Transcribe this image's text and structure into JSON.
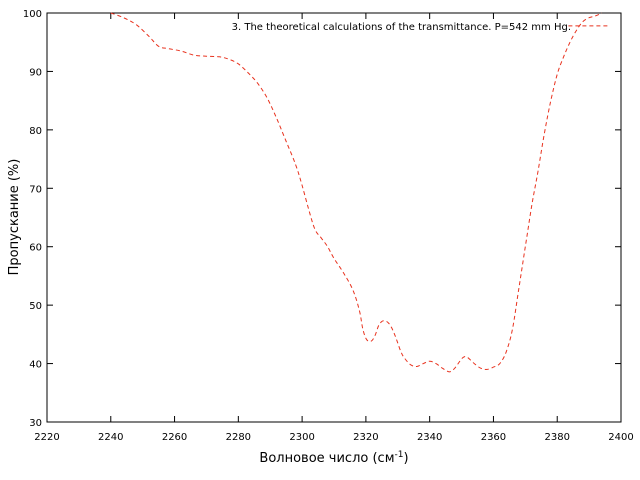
{
  "chart_data": {
    "type": "line",
    "title": "",
    "xlabel": "Волновое число (см",
    "xlabel_sup": "-1",
    "xlabel_end": ")",
    "ylabel": "Пропускание (%)",
    "xlim": [
      2220,
      2400
    ],
    "ylim": [
      30,
      100
    ],
    "xticks": [
      2220,
      2240,
      2260,
      2280,
      2300,
      2320,
      2340,
      2360,
      2380,
      2400
    ],
    "yticks": [
      30,
      40,
      50,
      60,
      70,
      80,
      90,
      100
    ],
    "xtick_labels": [
      "2220",
      "2240",
      "2260",
      "2280",
      "2300",
      "2320",
      "2340",
      "2360",
      "2380",
      "2400"
    ],
    "ytick_labels": [
      "30",
      "40",
      "50",
      "60",
      "70",
      "80",
      "90",
      "100"
    ],
    "grid": false,
    "legend_position": "top-right",
    "series": [
      {
        "name": "3. The theoretical calculations of the transmittance. P=542 mm Hg.",
        "color": "#e8321e",
        "style": "dashed",
        "x": [
          2240,
          2244,
          2248,
          2252,
          2255,
          2258,
          2262,
          2266,
          2270,
          2274,
          2277,
          2280,
          2283,
          2286,
          2289,
          2292,
          2295,
          2298,
          2300,
          2302,
          2304,
          2306,
          2308,
          2310,
          2313,
          2316,
          2318,
          2319,
          2320,
          2321,
          2322,
          2323,
          2324,
          2325,
          2326,
          2327,
          2328,
          2329,
          2330,
          2331,
          2332,
          2334,
          2336,
          2338,
          2340,
          2342,
          2344,
          2346,
          2347,
          2348,
          2350,
          2351,
          2352,
          2354,
          2356,
          2358,
          2360,
          2362,
          2364,
          2366,
          2368,
          2370,
          2372,
          2374,
          2376,
          2378,
          2380,
          2382,
          2384,
          2386,
          2388,
          2390,
          2392,
          2394
        ],
        "y": [
          100,
          99.2,
          98,
          96,
          94.3,
          93.9,
          93.5,
          92.8,
          92.6,
          92.5,
          92.1,
          91.3,
          89.8,
          88,
          85.5,
          82,
          78,
          74,
          70.5,
          66.5,
          63,
          61.5,
          60,
          58,
          55.5,
          52.5,
          49,
          46,
          44.3,
          43.8,
          44,
          45,
          46.5,
          47.2,
          47.3,
          47,
          46.2,
          45,
          43.5,
          42,
          41,
          39.8,
          39.5,
          40,
          40.4,
          40,
          39.2,
          38.6,
          38.8,
          39.3,
          40.8,
          41.2,
          41,
          40,
          39.2,
          39,
          39.4,
          40,
          42,
          46,
          53,
          60,
          67,
          73,
          79.5,
          85,
          89.5,
          92.5,
          95,
          97,
          98.5,
          99.2,
          99.5,
          100
        ]
      }
    ],
    "legend_sample": {
      "x": [
        2383.5,
        2396
      ],
      "y": 97.8
    }
  }
}
